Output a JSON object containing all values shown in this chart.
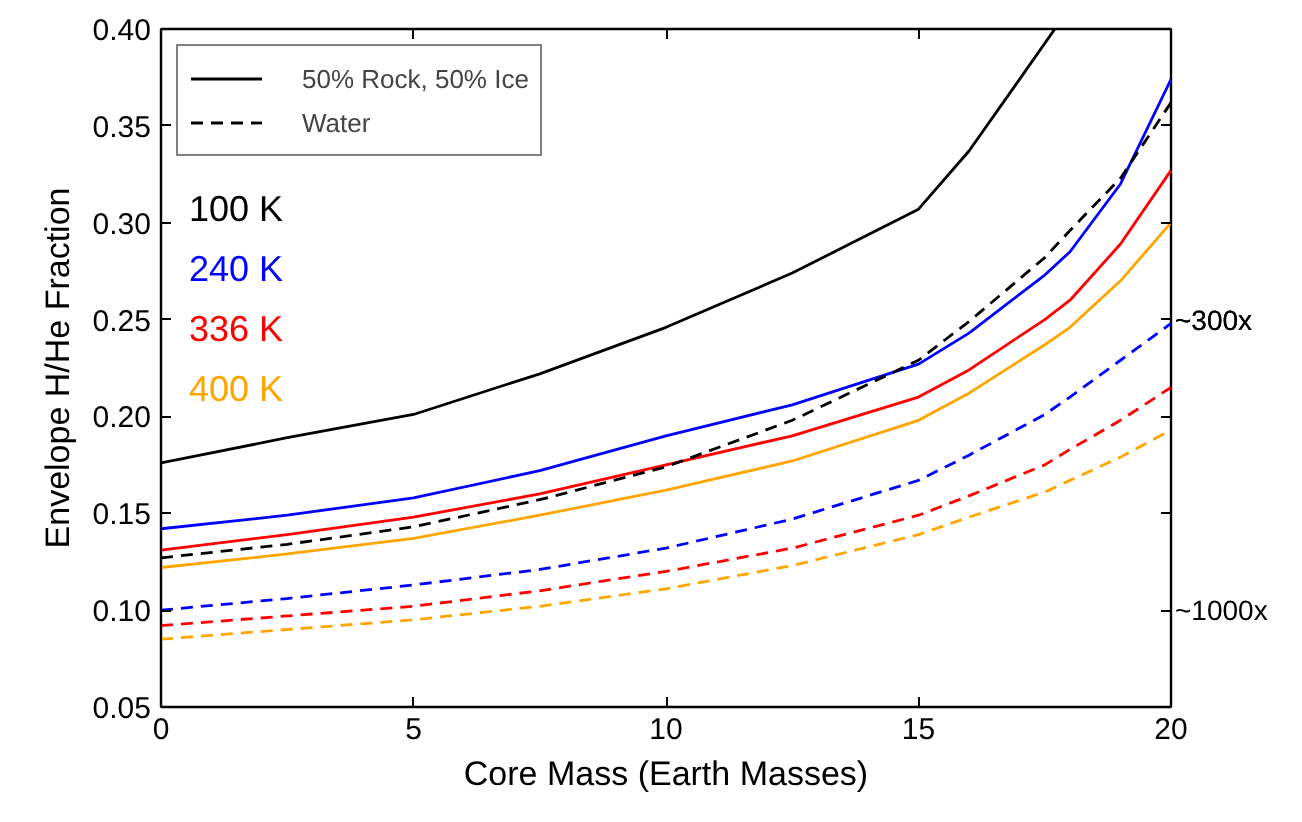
{
  "chart_data": {
    "type": "line",
    "xlabel": "Core Mass (Earth Masses)",
    "ylabel": "Envelope H/He Fraction",
    "x": [
      0,
      2.5,
      5,
      7.5,
      10,
      12.5,
      15,
      16,
      17,
      17.7
    ],
    "series": [
      {
        "name": "50% Rock, 50% Ice",
        "color": "#000000",
        "line_style": "solid",
        "values": [
          0.176,
          0.189,
          0.201,
          0.222,
          0.246,
          0.274,
          0.307,
          0.337,
          0.374,
          0.4
        ]
      },
      {
        "color": "#0000ff",
        "line_style": "solid",
        "x": [
          0,
          2.5,
          5,
          7.5,
          10,
          12.5,
          15,
          16,
          17.5,
          18,
          19,
          20
        ],
        "values": [
          0.142,
          0.149,
          0.158,
          0.172,
          0.19,
          0.206,
          0.227,
          0.243,
          0.273,
          0.285,
          0.32,
          0.374
        ]
      },
      {
        "color": "#ff0000",
        "line_style": "solid",
        "x": [
          0,
          2.5,
          5,
          7.5,
          10,
          12.5,
          15,
          16,
          17.5,
          18,
          19,
          20
        ],
        "values": [
          0.131,
          0.139,
          0.148,
          0.16,
          0.175,
          0.19,
          0.21,
          0.224,
          0.25,
          0.26,
          0.289,
          0.327
        ]
      },
      {
        "color": "#ffa500",
        "line_style": "solid",
        "x": [
          0,
          2.5,
          5,
          7.5,
          10,
          12.5,
          15,
          16,
          17.5,
          18,
          19,
          20
        ],
        "values": [
          0.122,
          0.129,
          0.137,
          0.149,
          0.162,
          0.177,
          0.198,
          0.212,
          0.237,
          0.246,
          0.27,
          0.3
        ]
      },
      {
        "name": "Water",
        "color": "#000000",
        "line_style": "dashed",
        "x": [
          0,
          2.5,
          5,
          7.5,
          10,
          12.5,
          15,
          16,
          17.5,
          18,
          19,
          20
        ],
        "values": [
          0.127,
          0.134,
          0.143,
          0.157,
          0.174,
          0.198,
          0.229,
          0.249,
          0.282,
          0.296,
          0.323,
          0.362
        ]
      },
      {
        "color": "#0000ff",
        "line_style": "dashed",
        "x": [
          0,
          2.5,
          5,
          7.5,
          10,
          12.5,
          15,
          16,
          17.5,
          18,
          19,
          20
        ],
        "values": [
          0.1,
          0.106,
          0.113,
          0.121,
          0.132,
          0.147,
          0.167,
          0.18,
          0.201,
          0.21,
          0.229,
          0.248
        ]
      },
      {
        "color": "#ff0000",
        "line_style": "dashed",
        "x": [
          0,
          2.5,
          5,
          7.5,
          10,
          12.5,
          15,
          16,
          17.5,
          18,
          19,
          20
        ],
        "values": [
          0.092,
          0.097,
          0.102,
          0.11,
          0.12,
          0.132,
          0.149,
          0.159,
          0.175,
          0.183,
          0.198,
          0.215
        ]
      },
      {
        "color": "#ffa500",
        "line_style": "dashed",
        "x": [
          0,
          2.5,
          5,
          7.5,
          10,
          12.5,
          15,
          16,
          17.5,
          18,
          19,
          20
        ],
        "values": [
          0.085,
          0.09,
          0.095,
          0.102,
          0.111,
          0.123,
          0.139,
          0.148,
          0.161,
          0.167,
          0.179,
          0.193
        ]
      }
    ],
    "annotations": [
      "100 K",
      "240 K",
      "336 K",
      "400 K",
      {
        "text": "~300x",
        "x": 20,
        "y": 0.25
      },
      "~1000x"
    ],
    "xlim": [
      0,
      20
    ],
    "xticks": [
      0,
      5,
      10,
      15,
      20
    ],
    "ylim": [
      0.05,
      0.4
    ],
    "yticks": [
      {
        "value": 0.05,
        "label": "0.05"
      },
      {
        "value": 0.1,
        "label": "0.10"
      },
      {
        "value": 0.15,
        "label": "0.15"
      },
      {
        "value": 0.2,
        "label": "0.20"
      },
      {
        "value": 0.25,
        "label": "0.25"
      },
      {
        "value": 0.3,
        "label": "0.30"
      },
      {
        "value": 0.35,
        "label": "0.35"
      },
      {
        "value": 0.4,
        "label": "0.40"
      }
    ],
    "legend": "top left",
    "grid": false
  }
}
